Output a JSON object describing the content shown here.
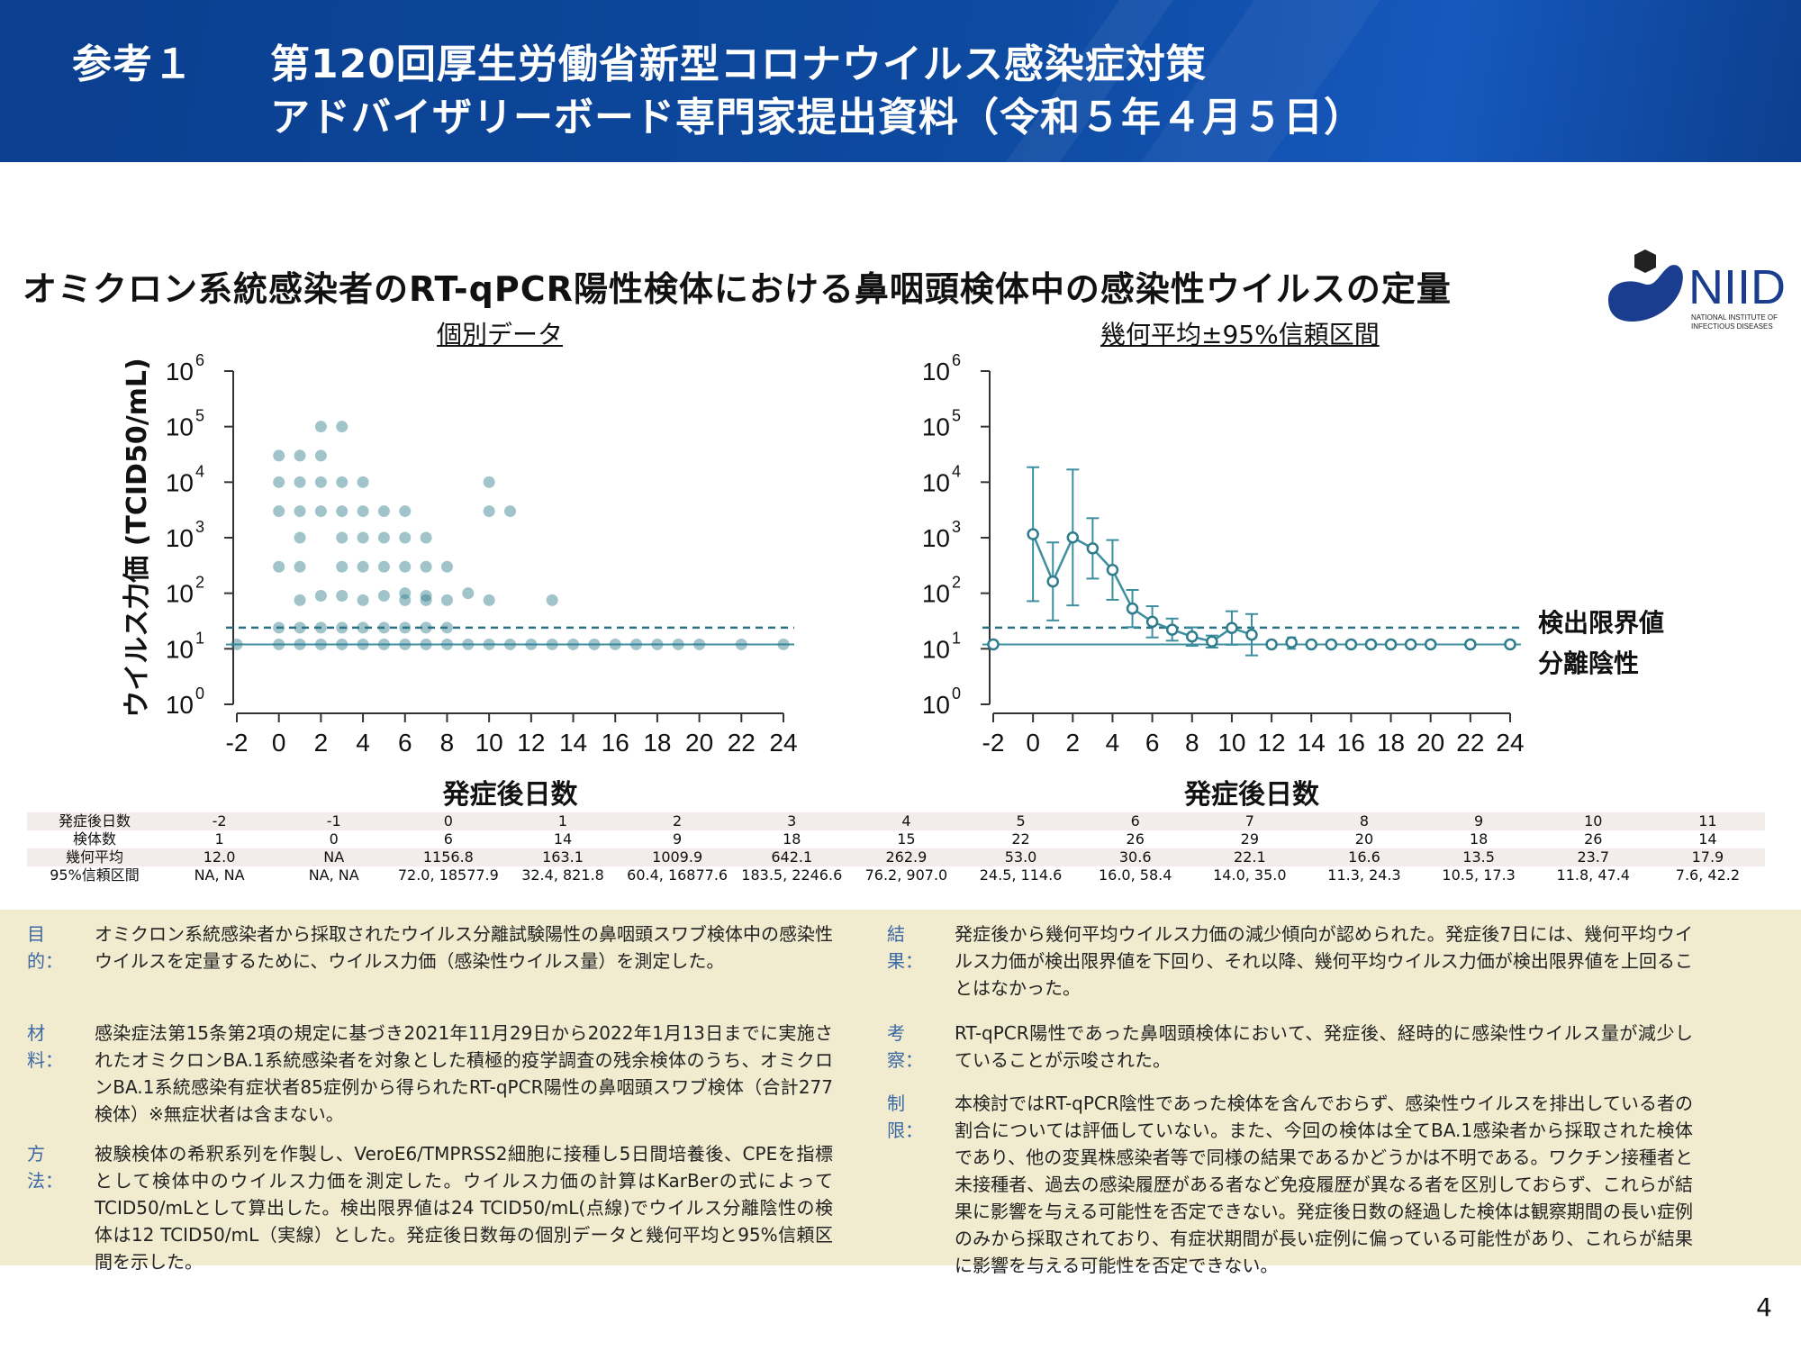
{
  "header": {
    "prefix": "参考１",
    "line1": "第120回厚生労働省新型コロナウイルス感染症対策",
    "line2": "アドバイザリーボード専門家提出資料（令和５年４月５日）"
  },
  "main_title": "オミクロン系統感染者のRT-qPCR陽性検体における鼻咽頭検体中の感染性ウイルスの定量",
  "logo": {
    "text": "NIID",
    "sub1": "NATIONAL INSTITUTE OF",
    "sub2": "INFECTIOUS DISEASES",
    "colors": {
      "navy": "#1a3d8f",
      "dark": "#222222"
    }
  },
  "colors": {
    "dot": "#2f7d8c",
    "line": "#3d8fa0",
    "dashed": "#2a6f86",
    "header_bg": "#0d4aa0",
    "panel_bg": "#f1ebcf",
    "label_blue": "#3a68a5"
  },
  "chart_data": [
    {
      "type": "scatter",
      "title": "個別データ",
      "xlabel": "発症後日数",
      "ylabel": "ウイルス力価 (TCID50/mL)",
      "xlim": [
        -2,
        24
      ],
      "xticks": [
        "-2",
        "0",
        "2",
        "4",
        "6",
        "8",
        "10",
        "12",
        "14",
        "16",
        "18",
        "20",
        "22",
        "24"
      ],
      "ylim_log10": [
        0,
        6
      ],
      "yticks": [
        "10",
        "10",
        "10",
        "10",
        "10",
        "10",
        "10"
      ],
      "ytick_exponents": [
        "0",
        "1",
        "2",
        "3",
        "4",
        "5",
        "6"
      ],
      "yscale": "log",
      "reference_lines": {
        "detection_limit": 24,
        "isolation_negative": 12
      },
      "points": [
        [
          -2,
          12
        ],
        [
          0,
          30000
        ],
        [
          0,
          10000
        ],
        [
          0,
          3000
        ],
        [
          0,
          300
        ],
        [
          0,
          24
        ],
        [
          0,
          12
        ],
        [
          1,
          30000
        ],
        [
          1,
          10000
        ],
        [
          1,
          3000
        ],
        [
          1,
          1000
        ],
        [
          1,
          300
        ],
        [
          1,
          75
        ],
        [
          1,
          24
        ],
        [
          1,
          12
        ],
        [
          2,
          100000
        ],
        [
          2,
          30000
        ],
        [
          2,
          10000
        ],
        [
          2,
          3000
        ],
        [
          2,
          90
        ],
        [
          2,
          24
        ],
        [
          2,
          12
        ],
        [
          3,
          100000
        ],
        [
          3,
          10000
        ],
        [
          3,
          3000
        ],
        [
          3,
          1000
        ],
        [
          3,
          300
        ],
        [
          3,
          90
        ],
        [
          3,
          24
        ],
        [
          3,
          12
        ],
        [
          4,
          10000
        ],
        [
          4,
          3000
        ],
        [
          4,
          1000
        ],
        [
          4,
          300
        ],
        [
          4,
          75
        ],
        [
          4,
          24
        ],
        [
          4,
          12
        ],
        [
          5,
          3000
        ],
        [
          5,
          1000
        ],
        [
          5,
          300
        ],
        [
          5,
          90
        ],
        [
          5,
          24
        ],
        [
          5,
          12
        ],
        [
          6,
          3000
        ],
        [
          6,
          1000
        ],
        [
          6,
          300
        ],
        [
          6,
          100
        ],
        [
          6,
          75
        ],
        [
          6,
          24
        ],
        [
          6,
          12
        ],
        [
          7,
          1000
        ],
        [
          7,
          300
        ],
        [
          7,
          90
        ],
        [
          7,
          75
        ],
        [
          7,
          24
        ],
        [
          7,
          12
        ],
        [
          8,
          300
        ],
        [
          8,
          75
        ],
        [
          8,
          24
        ],
        [
          8,
          12
        ],
        [
          9,
          100
        ],
        [
          9,
          12
        ],
        [
          10,
          10000
        ],
        [
          10,
          3000
        ],
        [
          10,
          75
        ],
        [
          10,
          12
        ],
        [
          11,
          3000
        ],
        [
          11,
          12
        ],
        [
          12,
          12
        ],
        [
          13,
          75
        ],
        [
          13,
          12
        ],
        [
          14,
          12
        ],
        [
          15,
          12
        ],
        [
          16,
          12
        ],
        [
          17,
          12
        ],
        [
          18,
          12
        ],
        [
          19,
          12
        ],
        [
          20,
          12
        ],
        [
          22,
          12
        ],
        [
          24,
          12
        ]
      ]
    },
    {
      "type": "line",
      "title": "幾何平均±95%信頼区間",
      "xlabel": "発症後日数",
      "xlim": [
        -2,
        24
      ],
      "xticks": [
        "-2",
        "0",
        "2",
        "4",
        "6",
        "8",
        "10",
        "12",
        "14",
        "16",
        "18",
        "20",
        "22",
        "24"
      ],
      "ylim_log10": [
        0,
        6
      ],
      "yticks": [
        "10",
        "10",
        "10",
        "10",
        "10",
        "10",
        "10"
      ],
      "ytick_exponents": [
        "0",
        "1",
        "2",
        "3",
        "4",
        "5",
        "6"
      ],
      "yscale": "log",
      "reference_lines": {
        "detection_limit": 24,
        "isolation_negative": 12
      },
      "legend": {
        "dashed": "検出限界値",
        "solid": "分離陰性"
      },
      "series": [
        {
          "x": [
            0,
            1,
            2,
            3,
            4,
            5,
            6,
            7,
            8,
            9,
            10,
            11
          ],
          "gm": [
            1156.8,
            163.1,
            1009.9,
            642.1,
            262.9,
            53.0,
            30.6,
            22.1,
            16.6,
            13.5,
            23.7,
            17.9
          ],
          "lo": [
            72.0,
            32.4,
            60.4,
            183.5,
            76.2,
            24.5,
            16.0,
            14.0,
            11.3,
            10.5,
            11.8,
            7.6
          ],
          "hi": [
            18577.9,
            821.8,
            16877.6,
            2246.6,
            907.0,
            114.6,
            58.4,
            35.0,
            24.3,
            17.3,
            47.4,
            42.2
          ]
        }
      ],
      "extra_points": [
        [
          -2,
          12
        ],
        [
          12,
          12
        ],
        [
          13,
          13
        ],
        [
          14,
          12
        ],
        [
          15,
          12
        ],
        [
          16,
          12
        ],
        [
          17,
          12
        ],
        [
          18,
          12
        ],
        [
          19,
          12
        ],
        [
          20,
          12
        ],
        [
          22,
          12
        ],
        [
          24,
          12
        ]
      ],
      "extra_ci": [
        [
          13,
          10,
          16
        ]
      ]
    }
  ],
  "legend_labels": {
    "detection": "検出限界値",
    "negative": "分離陰性"
  },
  "table": {
    "rows": [
      [
        "発症後日数",
        "-2",
        "-1",
        "0",
        "1",
        "2",
        "3",
        "4",
        "5",
        "6",
        "7",
        "8",
        "9",
        "10",
        "11"
      ],
      [
        "検体数",
        "1",
        "0",
        "6",
        "14",
        "9",
        "18",
        "15",
        "22",
        "26",
        "29",
        "20",
        "18",
        "26",
        "14"
      ],
      [
        "幾何平均",
        "12.0",
        "NA",
        "1156.8",
        "163.1",
        "1009.9",
        "642.1",
        "262.9",
        "53.0",
        "30.6",
        "22.1",
        "16.6",
        "13.5",
        "23.7",
        "17.9"
      ],
      [
        "95%信頼区間",
        "NA, NA",
        "NA, NA",
        "72.0, 18577.9",
        "32.4, 821.8",
        "60.4, 16877.6",
        "183.5, 2246.6",
        "76.2, 907.0",
        "24.5, 114.6",
        "16.0, 58.4",
        "14.0, 35.0",
        "11.3, 24.3",
        "10.5, 17.3",
        "11.8, 47.4",
        "7.6, 42.2"
      ]
    ]
  },
  "info": {
    "purpose": {
      "label": "目的：",
      "text": "オミクロン系統感染者から採取されたウイルス分離試験陽性の鼻咽頭スワブ検体中の感染性ウイルスを定量するために、ウイルス力価（感染性ウイルス量）を測定した。"
    },
    "materials": {
      "label": "材料：",
      "text": "感染症法第15条第2項の規定に基づき2021年11月29日から2022年1月13日までに実施されたオミクロンBA.1系統感染者を対象とした積極的疫学調査の残余検体のうち、オミクロンBA.1系統感染有症状者85症例から得られたRT-qPCR陽性の鼻咽頭スワブ検体（合計277検体）※無症状者は含まない。"
    },
    "methods": {
      "label": "方法：",
      "text": "被験検体の希釈系列を作製し、VeroE6/TMPRSS2細胞に接種し5日間培養後、CPEを指標として検体中のウイルス力価を測定した。ウイルス力価の計算はKarBerの式によってTCID50/mLとして算出した。検出限界値は24 TCID50/mL(点線)でウイルス分離陰性の検体は12 TCID50/mL（実線）とした。発症後日数毎の個別データと幾何平均と95%信頼区間を示した。"
    },
    "results": {
      "label": "結果：",
      "text": "発症後から幾何平均ウイルス力価の減少傾向が認められた。発症後7日には、幾何平均ウイルス力価が検出限界値を下回り、それ以降、幾何平均ウイルス力価が検出限界値を上回ることはなかった。"
    },
    "discussion": {
      "label": "考察：",
      "text": "RT-qPCR陽性であった鼻咽頭検体において、発症後、経時的に感染性ウイルス量が減少していることが示唆された。"
    },
    "limitations": {
      "label": "制限：",
      "text": "本検討ではRT-qPCR陰性であった検体を含んでおらず、感染性ウイルスを排出している者の割合については評価していない。また、今回の検体は全てBA.1感染者から採取された検体であり、他の変異株感染者等で同様の結果であるかどうかは不明である。ワクチン接種者と未接種者、過去の感染履歴がある者など免疫履歴が異なる者を区別しておらず、これらが結果に影響を与える可能性を否定できない。発症後日数の経過した検体は観察期間の長い症例のみから採取されており、有症状期間が長い症例に偏っている可能性があり、これらが結果に影響を与える可能性を否定できない。"
    }
  },
  "page_number": "4"
}
